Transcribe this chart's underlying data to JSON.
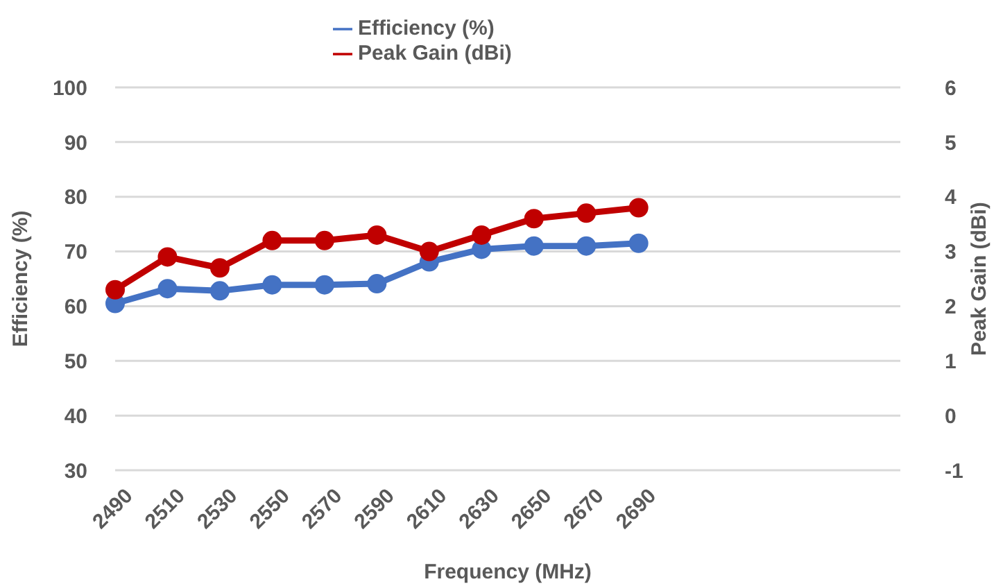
{
  "chart_data": {
    "type": "line",
    "xlabel": "Frequency (MHz)",
    "ylabel": "Efficiency (%)",
    "y2label": "Peak Gain (dBi)",
    "categories": [
      "2490",
      "2510",
      "2530",
      "2550",
      "2570",
      "2590",
      "2610",
      "2630",
      "2650",
      "2670",
      "2690",
      null,
      null,
      null,
      null,
      null
    ],
    "series": [
      {
        "name": "Efficiency (%)",
        "color": "#4472c4",
        "values": [
          60.5,
          63.2,
          62.8,
          63.9,
          63.9,
          64.1,
          68.1,
          70.4,
          71.0,
          71.0,
          71.5,
          null,
          null,
          null,
          null,
          null
        ]
      },
      {
        "name": "Peak Gain (dBi)",
        "color": "#c00000",
        "axis": "y2",
        "values": [
          2.3,
          2.9,
          2.7,
          3.2,
          3.2,
          3.3,
          3.0,
          3.3,
          3.6,
          3.7,
          3.8,
          null,
          null,
          null,
          null,
          null
        ]
      }
    ],
    "ylim": [
      30,
      100
    ],
    "yticks": [
      30,
      40,
      50,
      60,
      70,
      80,
      90,
      100
    ],
    "y2lim": [
      -1,
      6
    ],
    "y2ticks": [
      -1,
      0,
      1,
      2,
      3,
      4,
      5,
      6
    ],
    "grid": "y",
    "legend": "top",
    "marker": "circle",
    "line_style": "solid"
  }
}
